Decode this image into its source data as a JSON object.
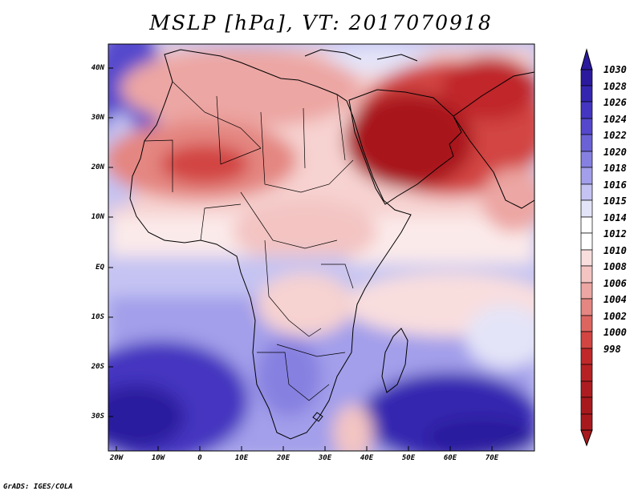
{
  "title": "MSLP [hPa], VT: 2017070918",
  "credit": "GrADS: IGES/COLA",
  "y_axis_labels": [
    "40N",
    "30N",
    "20N",
    "10N",
    "EQ",
    "10S",
    "20S",
    "30S"
  ],
  "x_axis_labels": [
    "20W",
    "10W",
    "0",
    "10E",
    "20E",
    "30E",
    "40E",
    "50E",
    "60E",
    "70E"
  ],
  "colorbar": {
    "labels": [
      "1030",
      "1028",
      "1026",
      "1024",
      "1022",
      "1020",
      "1018",
      "1016",
      "1015",
      "1014",
      "1012",
      "1010",
      "1008",
      "1006",
      "1004",
      "1002",
      "1000",
      "998"
    ],
    "colors": [
      "#2b1a9e",
      "#3526b0",
      "#4436c0",
      "#5548cc",
      "#6b62d6",
      "#8680e0",
      "#a39fea",
      "#c4c3f2",
      "#e4e4f8",
      "#ffffff",
      "#f9dede",
      "#f3c4c2",
      "#eca6a3",
      "#e48681",
      "#dd6560",
      "#d24542",
      "#c0282a",
      "#a8191d"
    ]
  }
}
